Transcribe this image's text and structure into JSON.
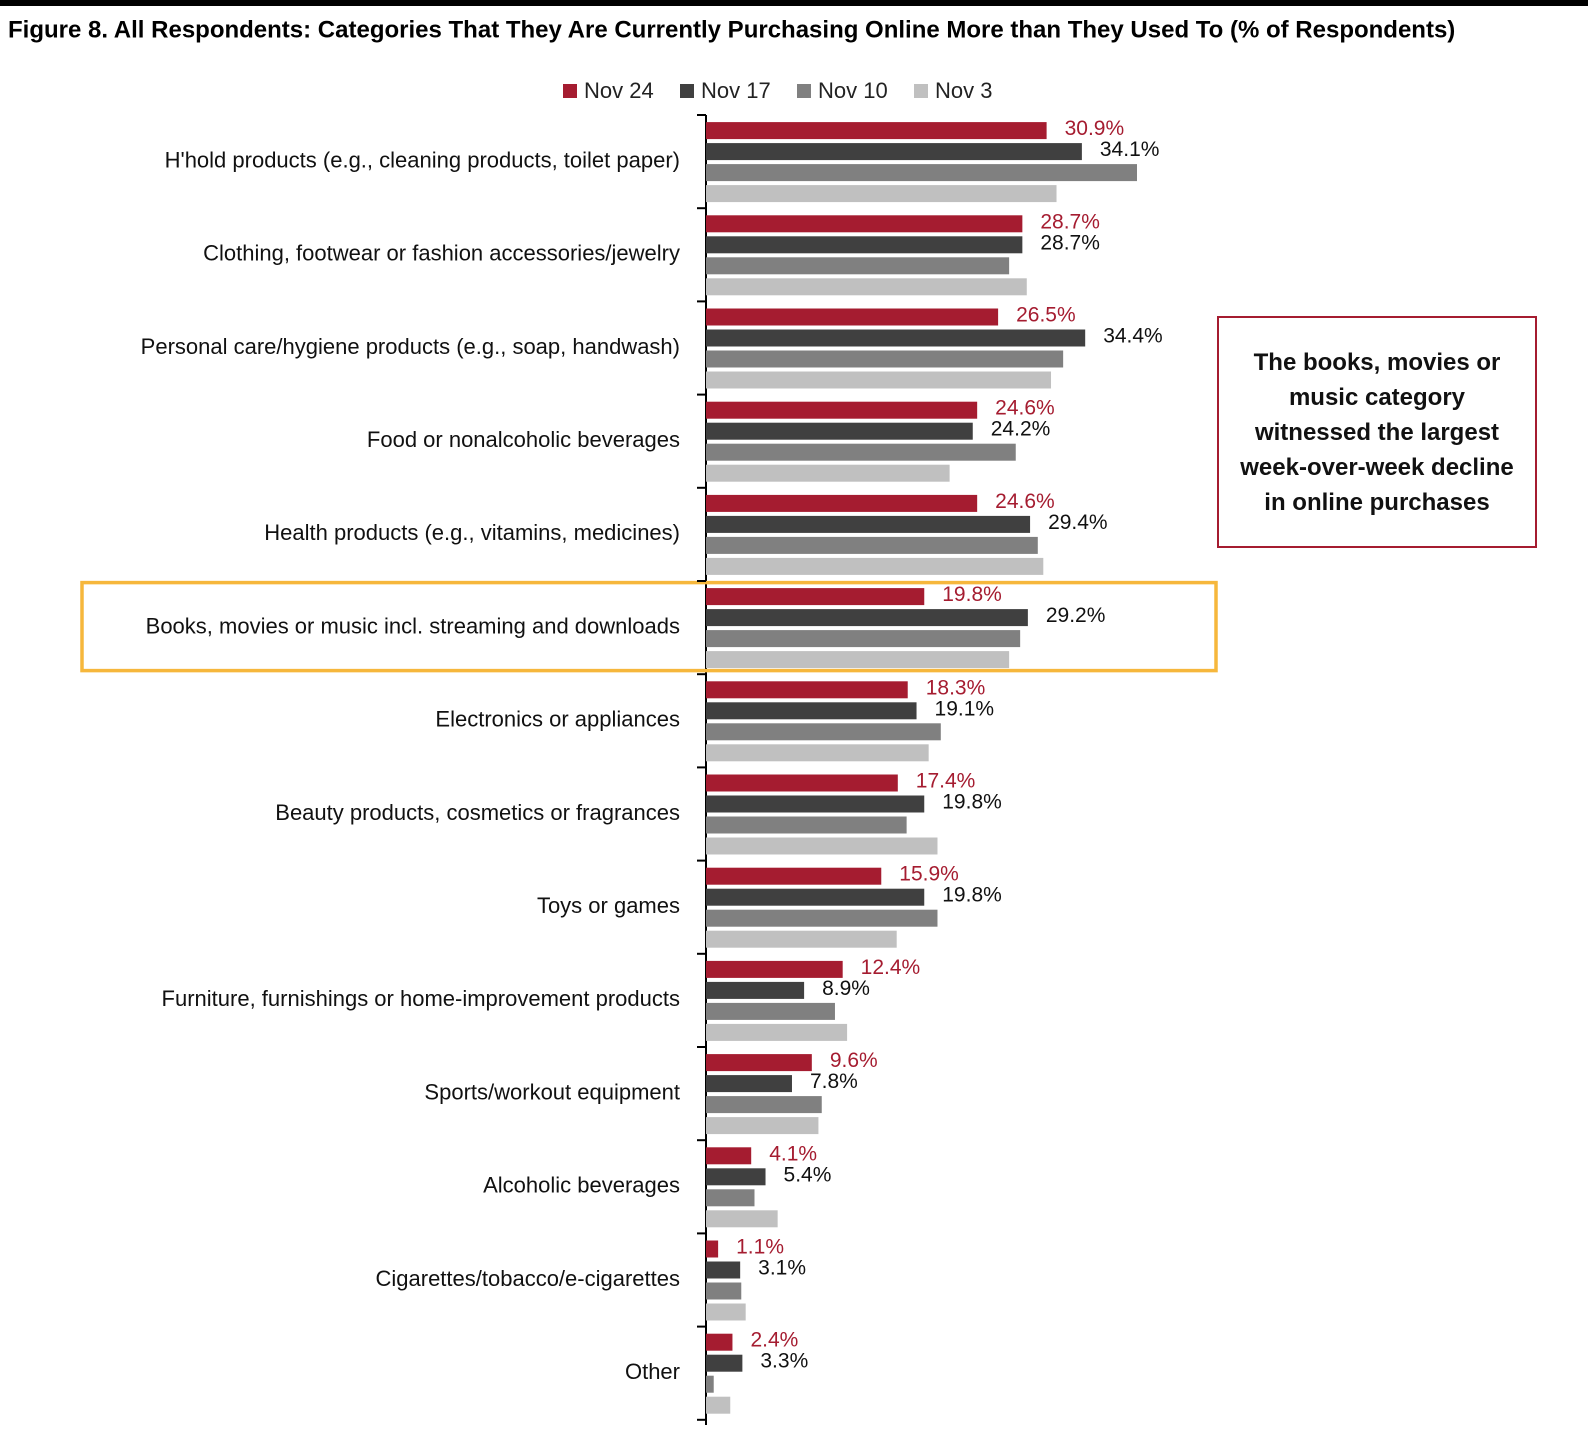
{
  "chart_data": {
    "type": "bar",
    "orientation": "horizontal",
    "title": "Figure 8. All Respondents: Categories That They Are Currently Purchasing Online More than They Used To (% of Respondents)",
    "annotation": "The books, movies or music category witnessed the largest week-over-week decline in online purchases",
    "highlight": 5,
    "categories": [
      "H'hold products (e.g., cleaning products, toilet paper)",
      "Clothing, footwear or fashion accessories/jewelry",
      "Personal care/hygiene products (e.g., soap, handwash)",
      "Food or nonalcoholic beverages",
      "Health products (e.g., vitamins, medicines)",
      "Books, movies or music incl. streaming and downloads",
      "Electronics or appliances",
      "Beauty products, cosmetics or fragrances",
      "Toys or games",
      "Furniture, furnishings or home-improvement products",
      "Sports/workout equipment",
      "Alcoholic beverages",
      "Cigarettes/tobacco/e-cigarettes",
      "Other"
    ],
    "series": [
      {
        "name": "Nov 24",
        "color": "#a51c30",
        "values": [
          30.9,
          28.7,
          26.5,
          24.6,
          24.6,
          19.8,
          18.3,
          17.4,
          15.9,
          12.4,
          9.6,
          4.1,
          1.1,
          2.4
        ],
        "value_labels": [
          "30.9%",
          "28.7%",
          "26.5%",
          "24.6%",
          "24.6%",
          "19.8%",
          "18.3%",
          "17.4%",
          "15.9%",
          "12.4%",
          "9.6%",
          "4.1%",
          "1.1%",
          "2.4%"
        ]
      },
      {
        "name": "Nov 17",
        "color": "#404040",
        "values": [
          34.1,
          28.7,
          34.4,
          24.2,
          29.4,
          29.2,
          19.1,
          19.8,
          19.8,
          8.9,
          7.8,
          5.4,
          3.1,
          3.3
        ],
        "value_labels": [
          "34.1%",
          "28.7%",
          "34.4%",
          "24.2%",
          "29.4%",
          "29.2%",
          "19.1%",
          "19.8%",
          "19.8%",
          "8.9%",
          "7.8%",
          "5.4%",
          "3.1%",
          "3.3%"
        ]
      },
      {
        "name": "Nov 10",
        "color": "#808080",
        "values": [
          39.1,
          27.5,
          32.4,
          28.1,
          30.1,
          28.5,
          21.3,
          18.2,
          21.0,
          11.7,
          10.5,
          4.4,
          3.2,
          0.7
        ]
      },
      {
        "name": "Nov 3",
        "color": "#c0c0c0",
        "values": [
          31.8,
          29.1,
          31.3,
          22.1,
          30.6,
          27.5,
          20.2,
          21.0,
          17.3,
          12.8,
          10.2,
          6.5,
          3.6,
          2.2
        ]
      }
    ]
  }
}
